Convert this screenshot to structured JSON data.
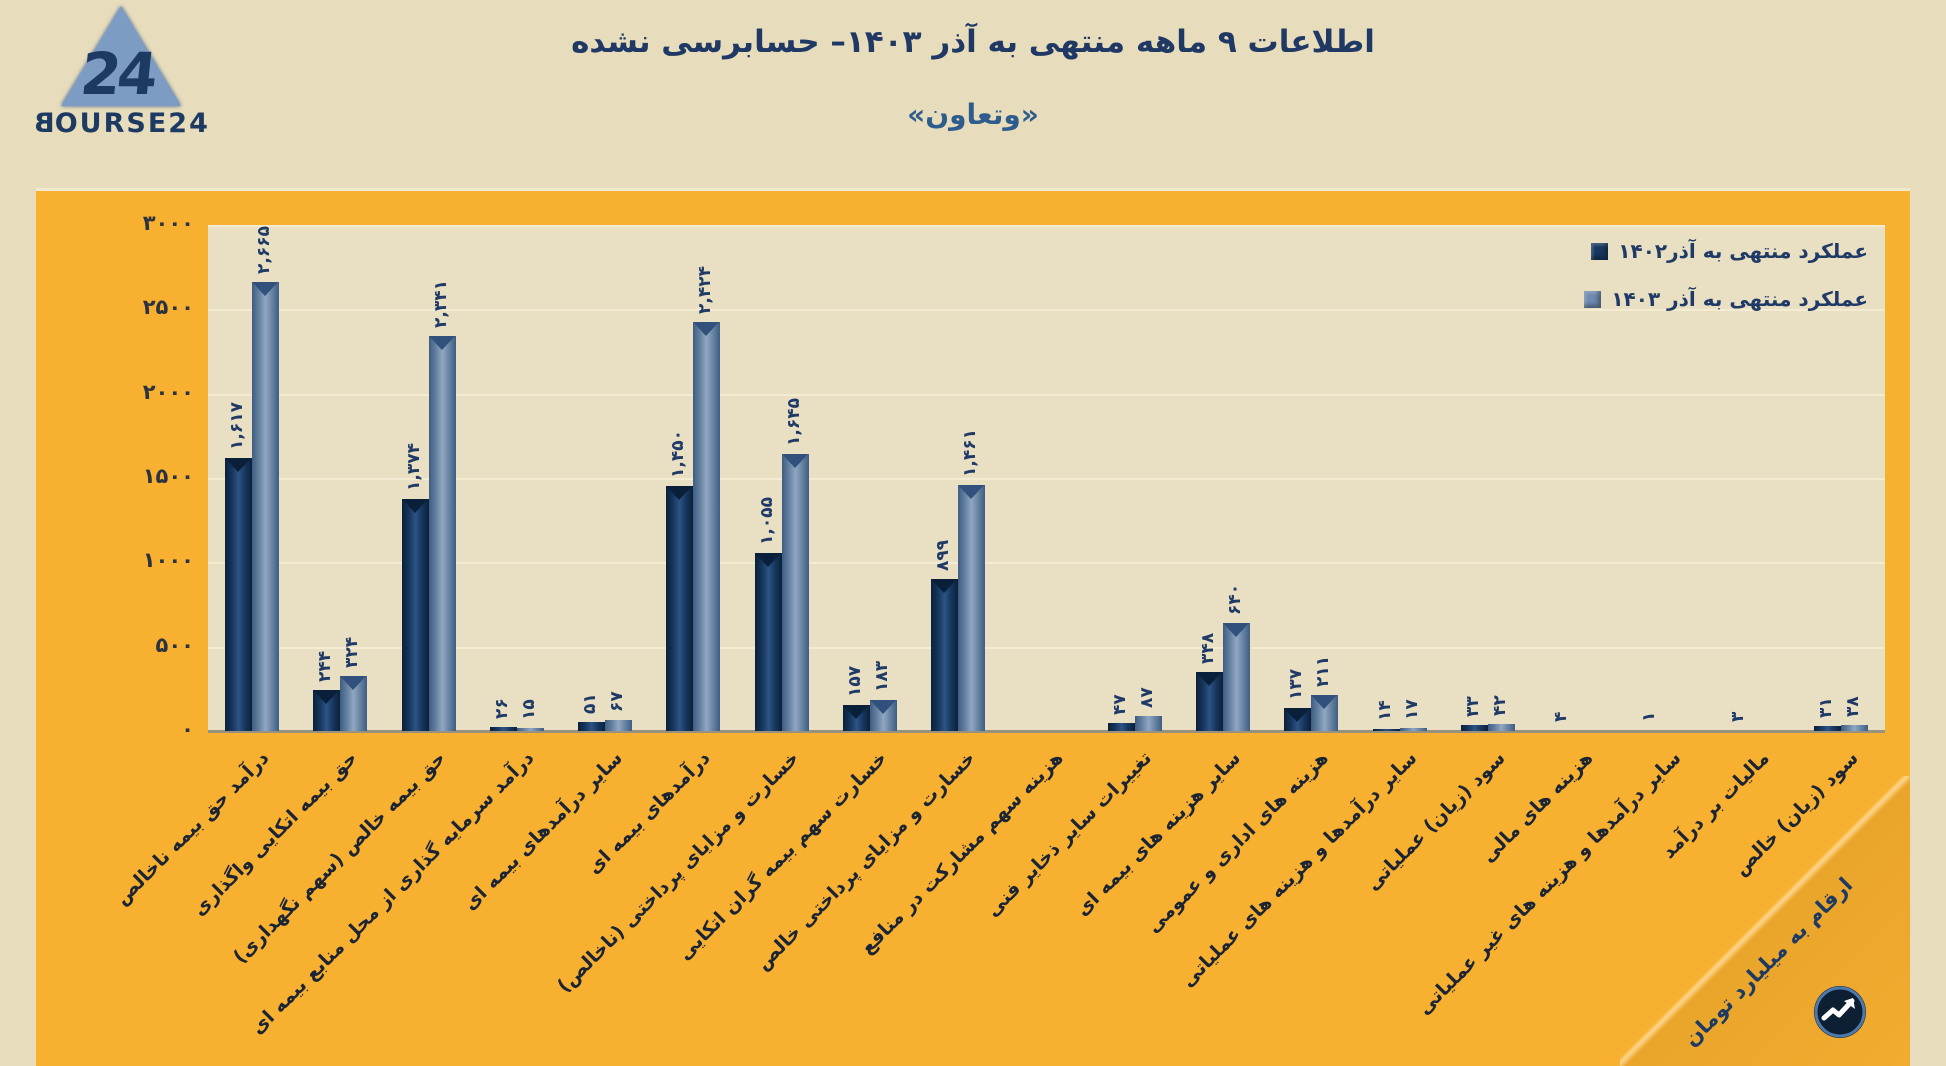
{
  "logo": {
    "brand": "BOURSE24",
    "number": "24"
  },
  "header": {
    "title": "اطلاعات ۹ ماهه منتهی به آذر  ۱۴۰۳– حسابرسی نشده",
    "subtitle": "«وتعاون»"
  },
  "footnote": "ارقام به میلیارد تومان",
  "colors": {
    "panel_orange": "#f8b031",
    "plot_background": "#e9e0c3",
    "page_background": "#e7ddbd",
    "series_1402": "#16375f",
    "series_1403": "#6d89ad",
    "text_navy": "#1f3864"
  },
  "chart_data": {
    "type": "bar",
    "title": "اطلاعات ۹ ماهه منتهی به آذر  ۱۴۰۳– حسابرسی نشده",
    "subtitle": "«وتعاون»",
    "unit_note": "ارقام به میلیارد تومان",
    "ylim": [
      0,
      3000
    ],
    "grid": true,
    "legend_position": "top-right",
    "y_ticks": [
      {
        "value": 3000,
        "label": "۳۰۰۰"
      },
      {
        "value": 2500,
        "label": "۲۵۰۰"
      },
      {
        "value": 2000,
        "label": "۲۰۰۰"
      },
      {
        "value": 1500,
        "label": "۱۵۰۰"
      },
      {
        "value": 1000,
        "label": "۱۰۰۰"
      },
      {
        "value": 500,
        "label": "۵۰۰"
      },
      {
        "value": 0,
        "label": "۰"
      }
    ],
    "categories": [
      "درآمد حق بیمه ناخالص",
      "حق بیمه اتکایی واگذاری",
      "حق بیمه خالص (سهم نگهداری)",
      "درآمد سرمایه گذاری از محل منابع بیمه ای",
      "سایر درآمدهای بیمه ای",
      "درآمدهای بیمه ای",
      "خسارت و مزایای پرداختی (ناخالص)",
      "خسارت سهم بیمه گران اتکایی",
      "خسارت و مزایای پرداختی خالص",
      "هزینه سهم مشارکت در منافع",
      "تغییرات سایر ذخایر فنی",
      "سایر هزینه های بیمه ای",
      "هزینه های اداری و عمومی",
      "سایر درآمدها و هزینه های عملیاتی",
      "سود (زیان) عملیاتی",
      "هزینه های مالی",
      "سایر درآمدها و هزینه های غیر عملیاتی",
      "مالیات بر درآمد",
      "سود (زیان) خالص"
    ],
    "series": [
      {
        "name": "عملکرد منتهی به آذر۱۴۰۲",
        "color": "#16375f",
        "values": [
          1617,
          244,
          1374,
          26,
          51,
          1450,
          1055,
          157,
          899,
          null,
          47,
          348,
          137,
          14,
          33,
          4,
          1,
          3,
          31
        ],
        "labels": [
          "۱,۶۱۷",
          "۲۴۴",
          "۱,۳۷۴",
          "۲۶",
          "۵۱",
          "۱,۴۵۰",
          "۱,۰۵۵",
          "۱۵۷",
          "۸۹۹",
          "",
          "۴۷",
          "۳۴۸",
          "۱۳۷",
          "۱۴",
          "۳۳",
          "۴",
          "۱",
          "۳",
          "۳۱"
        ]
      },
      {
        "name": "عملکرد منتهی به آذر ۱۴۰۳",
        "color": "#6d89ad",
        "values": [
          2665,
          324,
          2341,
          15,
          67,
          2424,
          1645,
          183,
          1461,
          null,
          87,
          640,
          211,
          17,
          42,
          null,
          null,
          null,
          38
        ],
        "labels": [
          "۲,۶۶۵",
          "۳۲۴",
          "۲,۳۴۱",
          "۱۵",
          "۶۷",
          "۲,۴۲۴",
          "۱,۶۴۵",
          "۱۸۳",
          "۱,۴۶۱",
          "",
          "۸۷",
          "۶۴۰",
          "۲۱۱",
          "۱۷",
          "۴۲",
          "",
          "",
          "",
          "۳۸"
        ]
      }
    ]
  }
}
